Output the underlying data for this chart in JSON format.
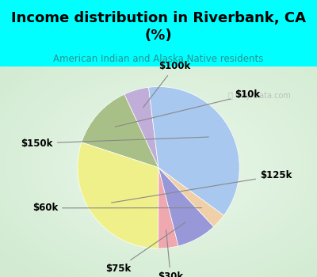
{
  "title": "Income distribution in Riverbank, CA\n(%)",
  "subtitle": "American Indian and Alaska Native residents",
  "title_color": "#000000",
  "subtitle_color": "#2a9090",
  "background_color": "#00ffff",
  "labels": [
    "$100k",
    "$10k",
    "$125k",
    "$30k",
    "$75k",
    "$60k",
    "$150k"
  ],
  "sizes": [
    5,
    13,
    30,
    4,
    8,
    3,
    37
  ],
  "colors": [
    "#c0aed8",
    "#a8c088",
    "#f0f08a",
    "#f0a8b0",
    "#9898d8",
    "#f0d0a8",
    "#a8c8f0"
  ],
  "watermark": "City-Data.com",
  "label_fontsize": 8.5,
  "title_fontsize": 13,
  "startangle": 97
}
